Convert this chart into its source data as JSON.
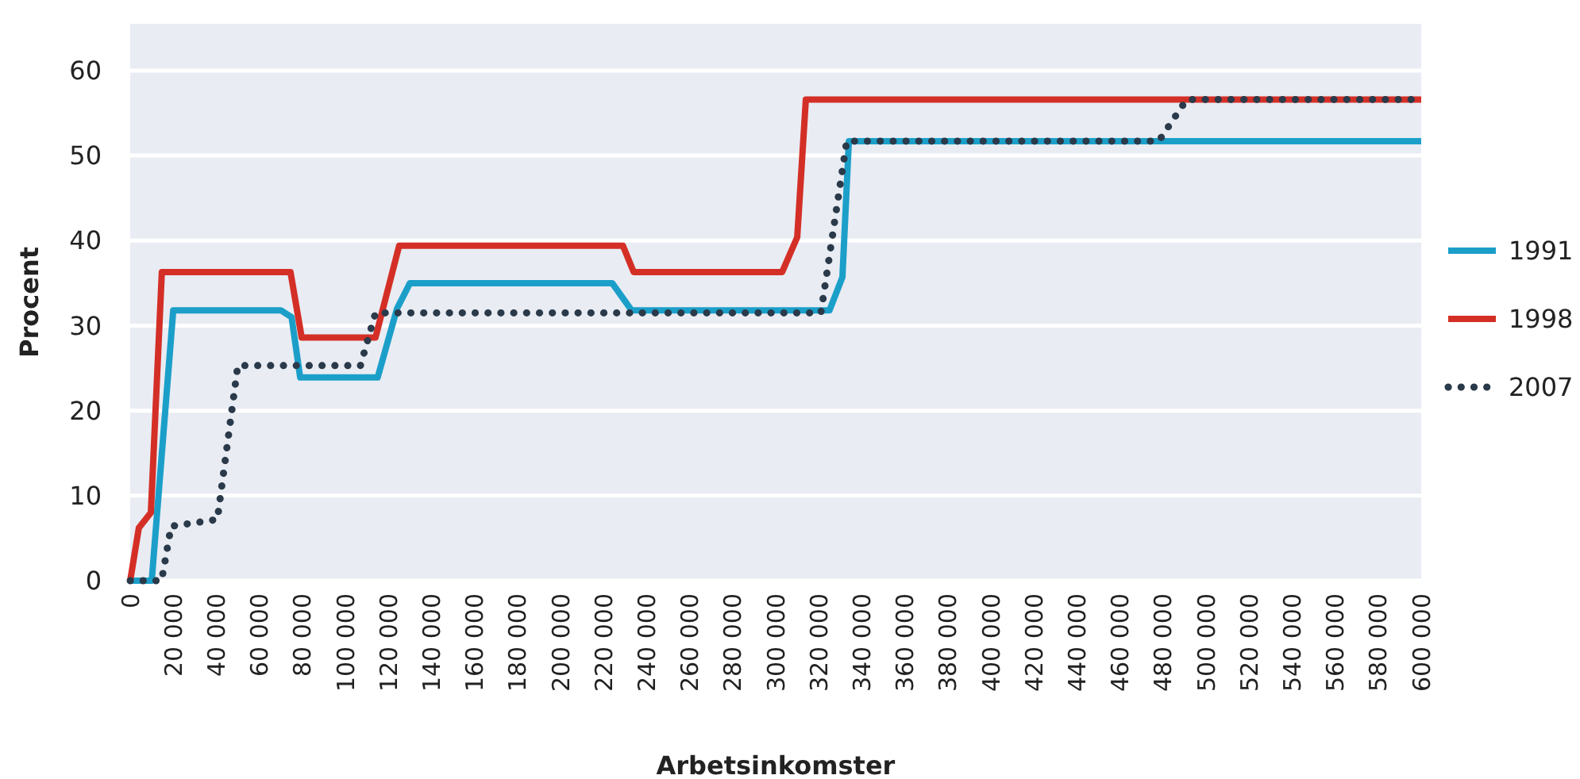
{
  "chart_data": {
    "type": "line",
    "xlabel": "Arbetsinkomster",
    "ylabel": "Procent",
    "xlim": [
      0,
      600000
    ],
    "xticks": [
      {
        "value": 0,
        "label": "0"
      },
      {
        "value": 20000,
        "label": "20 000"
      },
      {
        "value": 40000,
        "label": "40 000"
      },
      {
        "value": 60000,
        "label": "60 000"
      },
      {
        "value": 80000,
        "label": "80 000"
      },
      {
        "value": 100000,
        "label": "100 000"
      },
      {
        "value": 120000,
        "label": "120 000"
      },
      {
        "value": 140000,
        "label": "140 000"
      },
      {
        "value": 160000,
        "label": "160 000"
      },
      {
        "value": 180000,
        "label": "180 000"
      },
      {
        "value": 200000,
        "label": "200 000"
      },
      {
        "value": 220000,
        "label": "220 000"
      },
      {
        "value": 240000,
        "label": "240 000"
      },
      {
        "value": 260000,
        "label": "260 000"
      },
      {
        "value": 280000,
        "label": "280 000"
      },
      {
        "value": 300000,
        "label": "300 000"
      },
      {
        "value": 320000,
        "label": "320 000"
      },
      {
        "value": 340000,
        "label": "340 000"
      },
      {
        "value": 360000,
        "label": "360 000"
      },
      {
        "value": 380000,
        "label": "380 000"
      },
      {
        "value": 400000,
        "label": "400 000"
      },
      {
        "value": 420000,
        "label": "420 000"
      },
      {
        "value": 440000,
        "label": "440 000"
      },
      {
        "value": 460000,
        "label": "460 000"
      },
      {
        "value": 480000,
        "label": "480 000"
      },
      {
        "value": 500000,
        "label": "500 000"
      },
      {
        "value": 520000,
        "label": "520 000"
      },
      {
        "value": 540000,
        "label": "540 000"
      },
      {
        "value": 560000,
        "label": "560 000"
      },
      {
        "value": 580000,
        "label": "580 000"
      },
      {
        "value": 600000,
        "label": "600 000"
      }
    ],
    "ylim": [
      0,
      65.5
    ],
    "yticks": [
      0,
      10,
      20,
      30,
      40,
      50,
      60
    ],
    "grid": "y",
    "legend": "right",
    "marker": "none",
    "series": [
      {
        "name": "1991",
        "color": "#1b9fc9",
        "line_style": "solid",
        "x": [
          0,
          10000,
          20000,
          70000,
          75000,
          79000,
          115000,
          124000,
          130000,
          224000,
          233000,
          325000,
          331000,
          334000,
          600000
        ],
        "values": [
          0,
          0,
          31.8,
          31.8,
          31,
          23.9,
          23.9,
          32,
          35,
          35,
          31.8,
          31.8,
          35.7,
          51.7,
          51.7
        ]
      },
      {
        "name": "1998",
        "color": "#d42f26",
        "line_style": "solid",
        "x": [
          0,
          4000,
          9600,
          14700,
          74500,
          79700,
          114000,
          125000,
          229000,
          234000,
          303000,
          310000,
          314000,
          600000
        ],
        "values": [
          0,
          6.2,
          8,
          36.3,
          36.3,
          28.6,
          28.6,
          39.4,
          39.4,
          36.3,
          36.3,
          40.4,
          56.6,
          56.6
        ]
      },
      {
        "name": "2007",
        "color": "#2a3a4a",
        "line_style": "dotted",
        "x": [
          0,
          14600,
          19000,
          40500,
          50000,
          107000,
          114000,
          321000,
          333000,
          478000,
          491000,
          600000
        ],
        "values": [
          0,
          0,
          6.4,
          7.2,
          25.3,
          25.3,
          31.5,
          31.5,
          51.7,
          51.7,
          56.6,
          56.6
        ]
      }
    ]
  }
}
